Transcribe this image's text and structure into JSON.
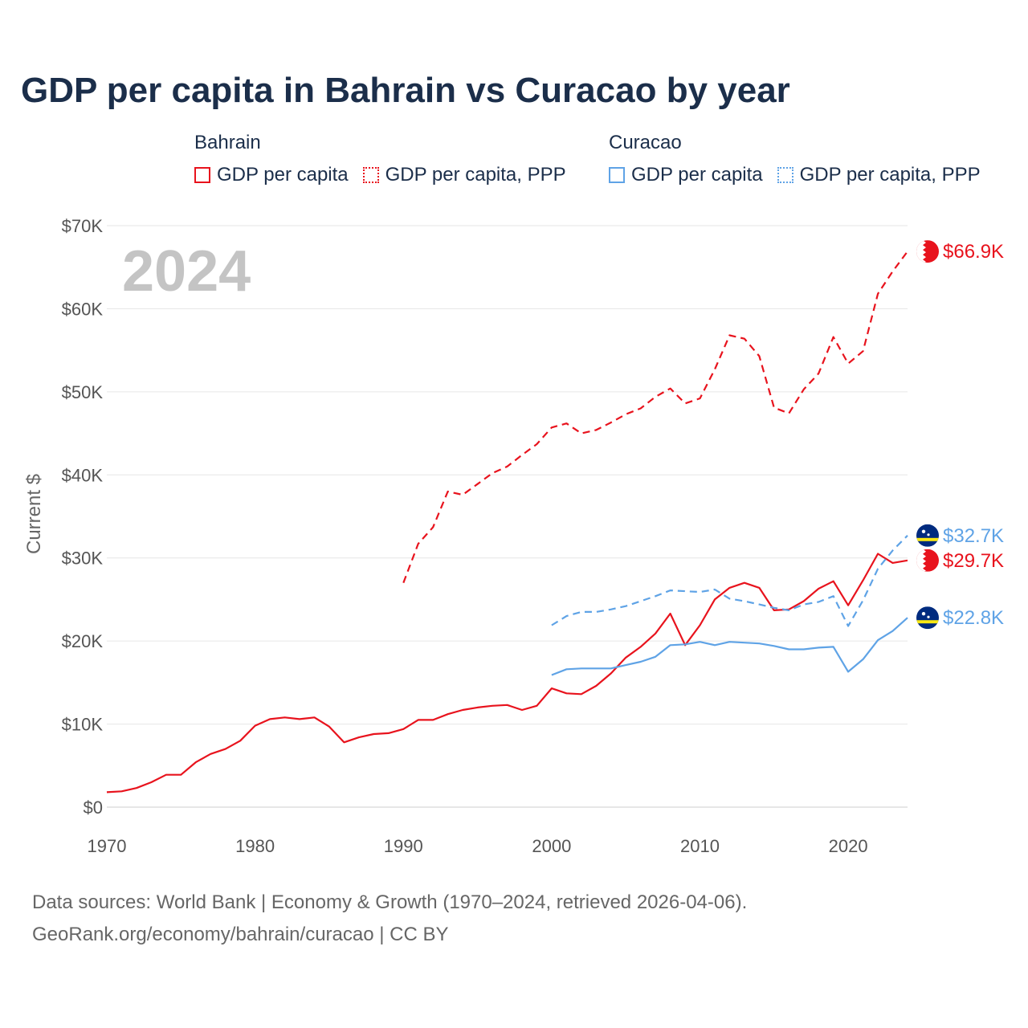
{
  "title": "GDP per capita in Bahrain vs Curacao by year",
  "legend": [
    {
      "group": "Bahrain",
      "items": [
        {
          "label": "GDP per capita",
          "color": "#e8131d",
          "style": "solid"
        },
        {
          "label": "GDP per capita, PPP",
          "color": "#e8131d",
          "style": "dotted"
        }
      ]
    },
    {
      "group": "Curacao",
      "items": [
        {
          "label": "GDP per capita",
          "color": "#5fa3e6",
          "style": "solid"
        },
        {
          "label": "GDP per capita, PPP",
          "color": "#5fa3e6",
          "style": "dotted"
        }
      ]
    }
  ],
  "chart_data": {
    "type": "line",
    "title": "GDP per capita in Bahrain vs Curacao by year",
    "year_label": "2024",
    "xlabel": "",
    "ylabel": "Current $",
    "xlim": [
      1970,
      2024
    ],
    "ylim": [
      0,
      70000
    ],
    "x_ticks": [
      1970,
      1980,
      1990,
      2000,
      2010,
      2020
    ],
    "x_tick_labels": [
      "1970",
      "1980",
      "1990",
      "2000",
      "2010",
      "2020"
    ],
    "y_ticks": [
      0,
      10000,
      20000,
      30000,
      40000,
      50000,
      60000,
      70000
    ],
    "y_tick_labels": [
      "$0",
      "$10K",
      "$20K",
      "$30K",
      "$40K",
      "$50K",
      "$60K",
      "$70K"
    ],
    "grid": true,
    "series": [
      {
        "name": "Bahrain GDP per capita",
        "color": "#e8131d",
        "dash": "solid",
        "end_label": "$29.7K",
        "flag": "bahrain",
        "x": [
          1970,
          1971,
          1972,
          1973,
          1974,
          1975,
          1976,
          1977,
          1978,
          1979,
          1980,
          1981,
          1982,
          1983,
          1984,
          1985,
          1986,
          1987,
          1988,
          1989,
          1990,
          1991,
          1992,
          1993,
          1994,
          1995,
          1996,
          1997,
          1998,
          1999,
          2000,
          2001,
          2002,
          2003,
          2004,
          2005,
          2006,
          2007,
          2008,
          2009,
          2010,
          2011,
          2012,
          2013,
          2014,
          2015,
          2016,
          2017,
          2018,
          2019,
          2020,
          2021,
          2022,
          2023,
          2024
        ],
        "values": [
          1800,
          1900,
          2300,
          3000,
          3900,
          3900,
          5400,
          6400,
          7000,
          8000,
          9800,
          10600,
          10800,
          10600,
          10800,
          9700,
          7800,
          8400,
          8800,
          8900,
          9400,
          10500,
          10500,
          11200,
          11700,
          12000,
          12200,
          12300,
          11700,
          12200,
          14300,
          13700,
          13600,
          14600,
          16100,
          18000,
          19300,
          20900,
          23300,
          19500,
          21900,
          25000,
          26400,
          27000,
          26400,
          23700,
          23800,
          24800,
          26300,
          27200,
          24300,
          27300,
          30500,
          29400,
          29700
        ]
      },
      {
        "name": "Bahrain GDP per capita, PPP",
        "color": "#e8131d",
        "dash": "dashed",
        "end_label": "$66.9K",
        "flag": "bahrain",
        "x": [
          1990,
          1991,
          1992,
          1993,
          1994,
          1995,
          1996,
          1997,
          1998,
          1999,
          2000,
          2001,
          2002,
          2003,
          2004,
          2005,
          2006,
          2007,
          2008,
          2009,
          2010,
          2011,
          2012,
          2013,
          2014,
          2015,
          2016,
          2017,
          2018,
          2019,
          2020,
          2021,
          2022,
          2023,
          2024
        ],
        "values": [
          27000,
          31700,
          33700,
          38000,
          37600,
          38900,
          40200,
          41000,
          42400,
          43700,
          45700,
          46200,
          45000,
          45400,
          46300,
          47300,
          48000,
          49400,
          50400,
          48600,
          49200,
          52700,
          56800,
          56400,
          54300,
          48100,
          47400,
          50300,
          52200,
          56600,
          53400,
          54900,
          61800,
          64500,
          66900
        ]
      },
      {
        "name": "Curacao GDP per capita",
        "color": "#5fa3e6",
        "dash": "solid",
        "end_label": "$22.8K",
        "flag": "curacao",
        "x": [
          2000,
          2001,
          2002,
          2003,
          2004,
          2005,
          2006,
          2007,
          2008,
          2009,
          2010,
          2011,
          2012,
          2013,
          2014,
          2015,
          2016,
          2017,
          2018,
          2019,
          2020,
          2021,
          2022,
          2023,
          2024
        ],
        "values": [
          15900,
          16600,
          16700,
          16700,
          16700,
          17100,
          17500,
          18100,
          19500,
          19600,
          19900,
          19500,
          19900,
          19800,
          19700,
          19400,
          19000,
          19000,
          19200,
          19300,
          16300,
          17800,
          20100,
          21200,
          22800
        ]
      },
      {
        "name": "Curacao GDP per capita, PPP",
        "color": "#5fa3e6",
        "dash": "dashed",
        "end_label": "$32.7K",
        "flag": "curacao",
        "x": [
          2000,
          2001,
          2002,
          2003,
          2004,
          2005,
          2006,
          2007,
          2008,
          2009,
          2010,
          2011,
          2012,
          2013,
          2014,
          2015,
          2016,
          2017,
          2018,
          2019,
          2020,
          2021,
          2022,
          2023,
          2024
        ],
        "values": [
          21900,
          23000,
          23500,
          23500,
          23800,
          24200,
          24800,
          25400,
          26100,
          26000,
          25900,
          26200,
          25100,
          24800,
          24400,
          24000,
          23700,
          24400,
          24700,
          25400,
          21800,
          24900,
          28700,
          30900,
          32700
        ]
      }
    ]
  },
  "footer": {
    "line1": "Data sources: World Bank | Economy & Growth (1970–2024, retrieved 2026-04-06).",
    "line2": "GeoRank.org/economy/bahrain/curacao | CC BY"
  }
}
